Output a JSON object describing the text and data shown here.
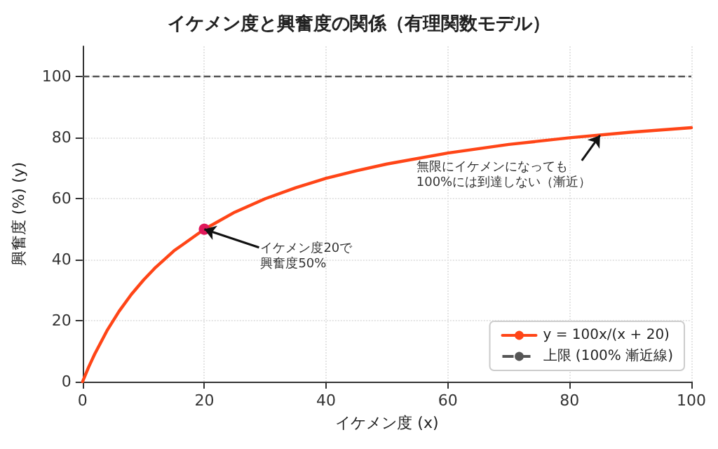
{
  "chart_data": {
    "type": "line",
    "title": "イケメン度と興奮度の関係（有理関数モデル）",
    "xlabel": "イケメン度 (x)",
    "ylabel": "興奮度 (%) (y)",
    "xlim": [
      0,
      100
    ],
    "ylim": [
      0,
      110
    ],
    "xticks": [
      0,
      20,
      40,
      60,
      80,
      100
    ],
    "yticks": [
      0,
      20,
      40,
      60,
      80,
      100
    ],
    "grid": true,
    "legend": "bottom right",
    "marker": "none",
    "line_style": "solid",
    "series": [
      {
        "name": "y = 100x/(x + 20)",
        "color": "#ff4517",
        "x": [
          0,
          1,
          2,
          4,
          6,
          8,
          10,
          12,
          15,
          20,
          25,
          30,
          35,
          40,
          45,
          50,
          60,
          70,
          80,
          90,
          100
        ],
        "values": [
          0,
          4.8,
          9.1,
          16.7,
          23.1,
          28.6,
          33.3,
          37.5,
          42.9,
          50,
          55.6,
          60,
          63.6,
          66.7,
          69.2,
          71.4,
          75,
          77.8,
          80,
          81.8,
          83.3
        ]
      },
      {
        "type": "scatter",
        "color": "#e0185a",
        "marker": "circle",
        "x": [
          20
        ],
        "values": [
          50
        ]
      }
    ],
    "ref_lines": [
      {
        "axis": "y",
        "value": 100,
        "label": "上限 (100% 漸近線)",
        "color": "#555555",
        "line_style": "dashed"
      }
    ],
    "annotations": [
      {
        "text": "イケメン度20で興奮度50%",
        "x": 20,
        "y": 50
      },
      {
        "text": "無限にイケメンになっても100%には到達しない（漸近）",
        "x": 85,
        "y": 80.8
      }
    ]
  }
}
